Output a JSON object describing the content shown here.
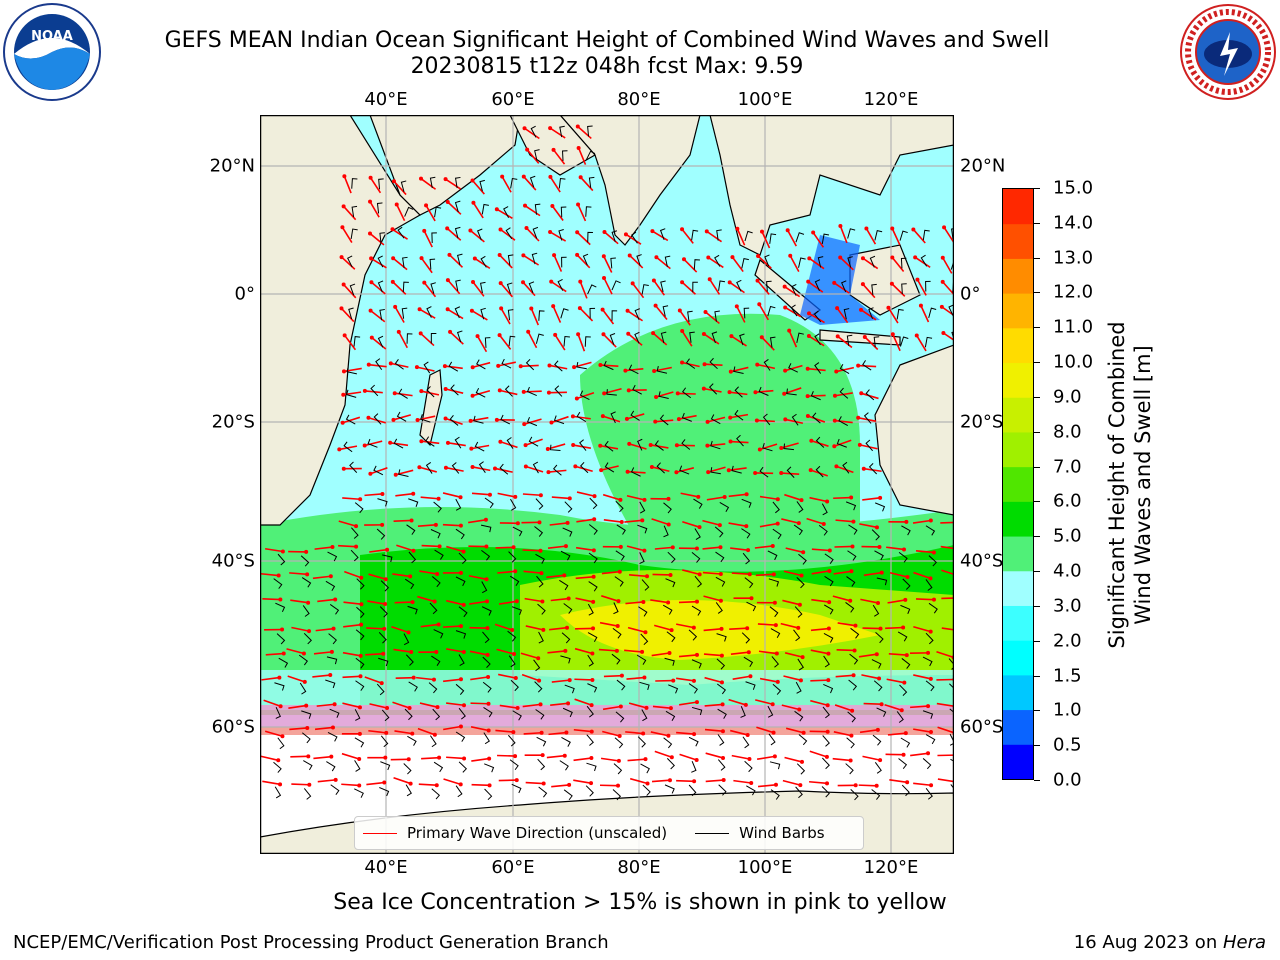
{
  "header": {
    "title_line1": "GEFS MEAN Indian Ocean Significant Height of Combined Wind Waves and Swell",
    "title_line2": "20230815 t12z 048h fcst   Max: 9.59"
  },
  "logos": {
    "left": "NOAA",
    "right": "NATIONAL WEATHER SERVICE"
  },
  "axes": {
    "lon_top": [
      "40°E",
      "60°E",
      "80°E",
      "100°E",
      "120°E"
    ],
    "lon_bottom": [
      "40°E",
      "60°E",
      "80°E",
      "100°E",
      "120°E"
    ],
    "lat_left": [
      "20°N",
      "0°",
      "20°S",
      "40°S",
      "60°S"
    ],
    "lat_right": [
      "20°N",
      "0°",
      "20°S",
      "40°S",
      "60°S"
    ]
  },
  "colorbar": {
    "title_line1": "Significant Height of Combined",
    "title_line2": "Wind Waves and Swell [m]",
    "levels": [
      "0.0",
      "0.5",
      "1.0",
      "1.5",
      "2.0",
      "3.0",
      "4.0",
      "5.0",
      "6.0",
      "7.0",
      "8.0",
      "9.0",
      "10.0",
      "11.0",
      "12.0",
      "13.0",
      "14.0",
      "15.0"
    ],
    "colors": [
      "#0000ff",
      "#0a64ff",
      "#00c8ff",
      "#00ffff",
      "#3cffff",
      "#a0ffff",
      "#50f078",
      "#00dc00",
      "#50e600",
      "#a0f000",
      "#c8f000",
      "#f0f000",
      "#ffdc00",
      "#ffb400",
      "#ff8c00",
      "#ff5000",
      "#ff2800",
      "#ff0000"
    ]
  },
  "legend": {
    "wave_direction": "Primary Wave Direction (unscaled)",
    "wind_barbs": "Wind Barbs",
    "wave_color": "#ff0000",
    "barb_color": "#000000"
  },
  "footer": {
    "sea_ice_note": "Sea Ice Concentration > 15% is shown in pink to yellow",
    "credit": "NCEP/EMC/Verification Post Processing Product Generation Branch",
    "date_prefix": "16 Aug 2023 on ",
    "host": "Hera"
  },
  "map_colors": {
    "land": "#f0eedc",
    "ice": "#ffffff",
    "grid": "#b4b4b4"
  }
}
